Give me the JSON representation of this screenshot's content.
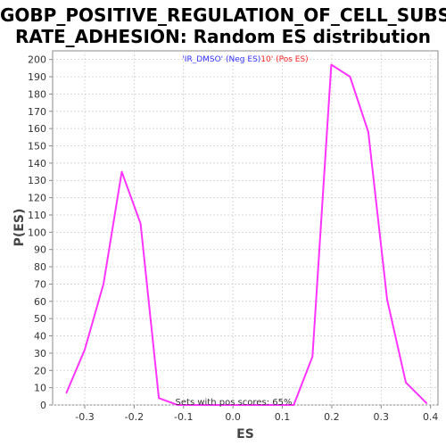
{
  "chart_data": {
    "type": "line",
    "title_line1": "GOBP_POSITIVE_REGULATION_OF_CELL_SUBST",
    "title_line2": "RATE_ADHESION: Random ES distribution",
    "xlabel": "ES",
    "ylabel": "P(ES)",
    "xlim": [
      -0.365,
      0.415
    ],
    "ylim": [
      0,
      205
    ],
    "xticks": [
      -0.3,
      -0.2,
      -0.1,
      0.0,
      0.1,
      0.2,
      0.3,
      0.4
    ],
    "xtick_labels": [
      "-0.3",
      "-0.2",
      "-0.1",
      "0.0",
      "0.1",
      "0.2",
      "0.3",
      "0.4"
    ],
    "yticks": [
      0,
      10,
      20,
      30,
      40,
      50,
      60,
      70,
      80,
      90,
      100,
      110,
      120,
      130,
      140,
      150,
      160,
      170,
      180,
      190,
      200
    ],
    "grid": true,
    "series": [
      {
        "color": "#ff33ff",
        "x": [
          -0.337,
          -0.3,
          -0.262,
          -0.225,
          -0.187,
          -0.15,
          -0.112,
          0.123,
          0.161,
          0.199,
          0.237,
          0.274,
          0.312,
          0.35,
          0.392
        ],
        "y": [
          7,
          32,
          70,
          135,
          105,
          4,
          0,
          0,
          28,
          197,
          190,
          158,
          61,
          13,
          1
        ]
      }
    ],
    "legend": {
      "placement": "top-center",
      "neg_text": "'IR_DMSO' (Neg ES)",
      "pos_text": "10' (Pos ES)",
      "neg_color": "#3333ff",
      "pos_color": "#ff2222"
    },
    "annotation": "Sets with pos scores: 65%"
  }
}
